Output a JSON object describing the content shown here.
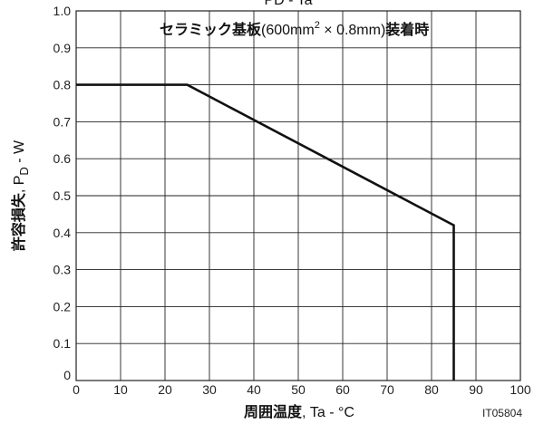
{
  "chart_data": {
    "type": "line",
    "title": "PD - Ta",
    "annotation": {
      "bold_text": "セラミック基板",
      "paren_open": "(600mm",
      "superscript": "2",
      "paren_rest": " × 0.8mm)",
      "bold_suffix": "装着時"
    },
    "xlabel": {
      "bold": "周囲温度",
      "rest": ", Ta - °C"
    },
    "ylabel": {
      "bold": "許容損失",
      "rest_prefix": ", P",
      "subscript": "D",
      "rest_suffix": " - W"
    },
    "xlim": [
      0,
      100
    ],
    "ylim": [
      0,
      1.0
    ],
    "xticks": [
      "0",
      "10",
      "20",
      "30",
      "40",
      "50",
      "60",
      "70",
      "80",
      "90",
      "100"
    ],
    "yticks": [
      "0",
      "0.1",
      "0.2",
      "0.3",
      "0.4",
      "0.5",
      "0.6",
      "0.7",
      "0.8",
      "0.9",
      "1.0"
    ],
    "grid": true,
    "series": [
      {
        "x": [
          0,
          25,
          85,
          85
        ],
        "y": [
          0.8,
          0.8,
          0.42,
          0
        ]
      }
    ],
    "figure_code": "IT05804"
  }
}
